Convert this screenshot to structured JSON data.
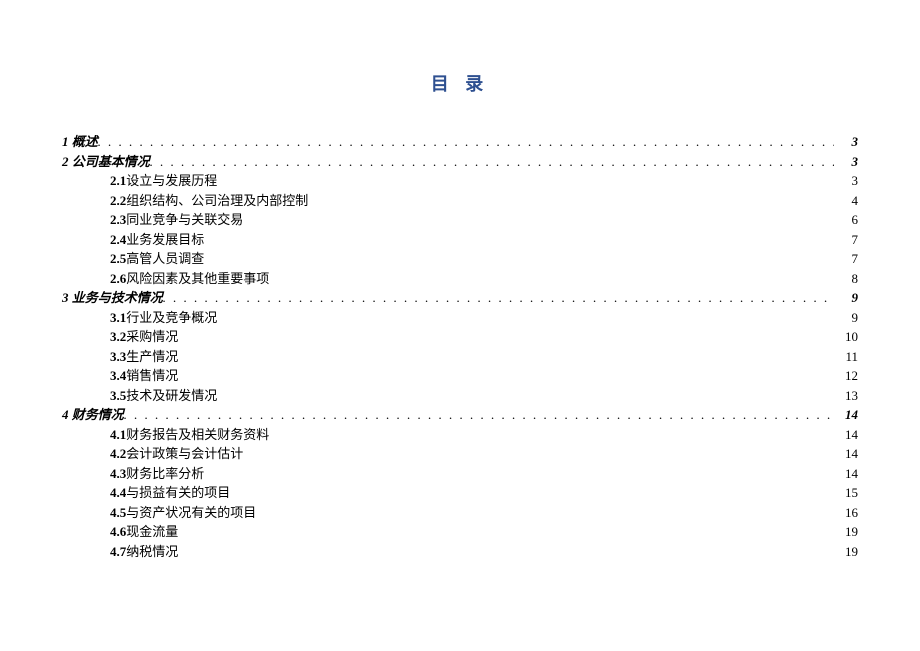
{
  "title": "目 录",
  "colors": {
    "title": "#2e5090",
    "text": "#000000",
    "background": "#ffffff"
  },
  "typography": {
    "title_fontsize": 18,
    "body_fontsize": 13,
    "font_family": "SimSun"
  },
  "toc": [
    {
      "level": 1,
      "num": "1",
      "text": "概述",
      "page": "3"
    },
    {
      "level": 1,
      "num": "2",
      "text": "公司基本情况",
      "page": "3"
    },
    {
      "level": 2,
      "num": "2.1",
      "text": "设立与发展历程",
      "page": "3"
    },
    {
      "level": 2,
      "num": "2.2",
      "text": "组织结构、公司治理及内部控制",
      "page": "4"
    },
    {
      "level": 2,
      "num": "2.3",
      "text": "同业竞争与关联交易",
      "page": "6"
    },
    {
      "level": 2,
      "num": "2.4",
      "text": "业务发展目标",
      "page": "7"
    },
    {
      "level": 2,
      "num": "2.5",
      "text": "高管人员调查",
      "page": "7"
    },
    {
      "level": 2,
      "num": "2.6",
      "text": "风险因素及其他重要事项",
      "page": "8"
    },
    {
      "level": 1,
      "num": "3",
      "text": "业务与技术情况",
      "page": "9"
    },
    {
      "level": 2,
      "num": "3.1",
      "text": "行业及竞争概况",
      "page": "9"
    },
    {
      "level": 2,
      "num": "3.2",
      "text": "采购情况",
      "page": "10"
    },
    {
      "level": 2,
      "num": "3.3",
      "text": "生产情况",
      "page": "11"
    },
    {
      "level": 2,
      "num": "3.4",
      "text": "销售情况",
      "page": "12"
    },
    {
      "level": 2,
      "num": "3.5",
      "text": "技术及研发情况",
      "page": "13"
    },
    {
      "level": 1,
      "num": "4",
      "text": "财务情况",
      "page": "14"
    },
    {
      "level": 2,
      "num": "4.1",
      "text": "财务报告及相关财务资料",
      "page": "14"
    },
    {
      "level": 2,
      "num": "4.2",
      "text": "会计政策与会计估计",
      "page": "14"
    },
    {
      "level": 2,
      "num": "4.3",
      "text": "财务比率分析",
      "page": "14"
    },
    {
      "level": 2,
      "num": "4.4",
      "text": "与损益有关的项目",
      "page": "15"
    },
    {
      "level": 2,
      "num": "4.5",
      "text": "与资产状况有关的项目",
      "page": "16"
    },
    {
      "level": 2,
      "num": "4.6",
      "text": "现金流量",
      "page": "19"
    },
    {
      "level": 2,
      "num": "4.7",
      "text": "纳税情况",
      "page": "19"
    }
  ]
}
